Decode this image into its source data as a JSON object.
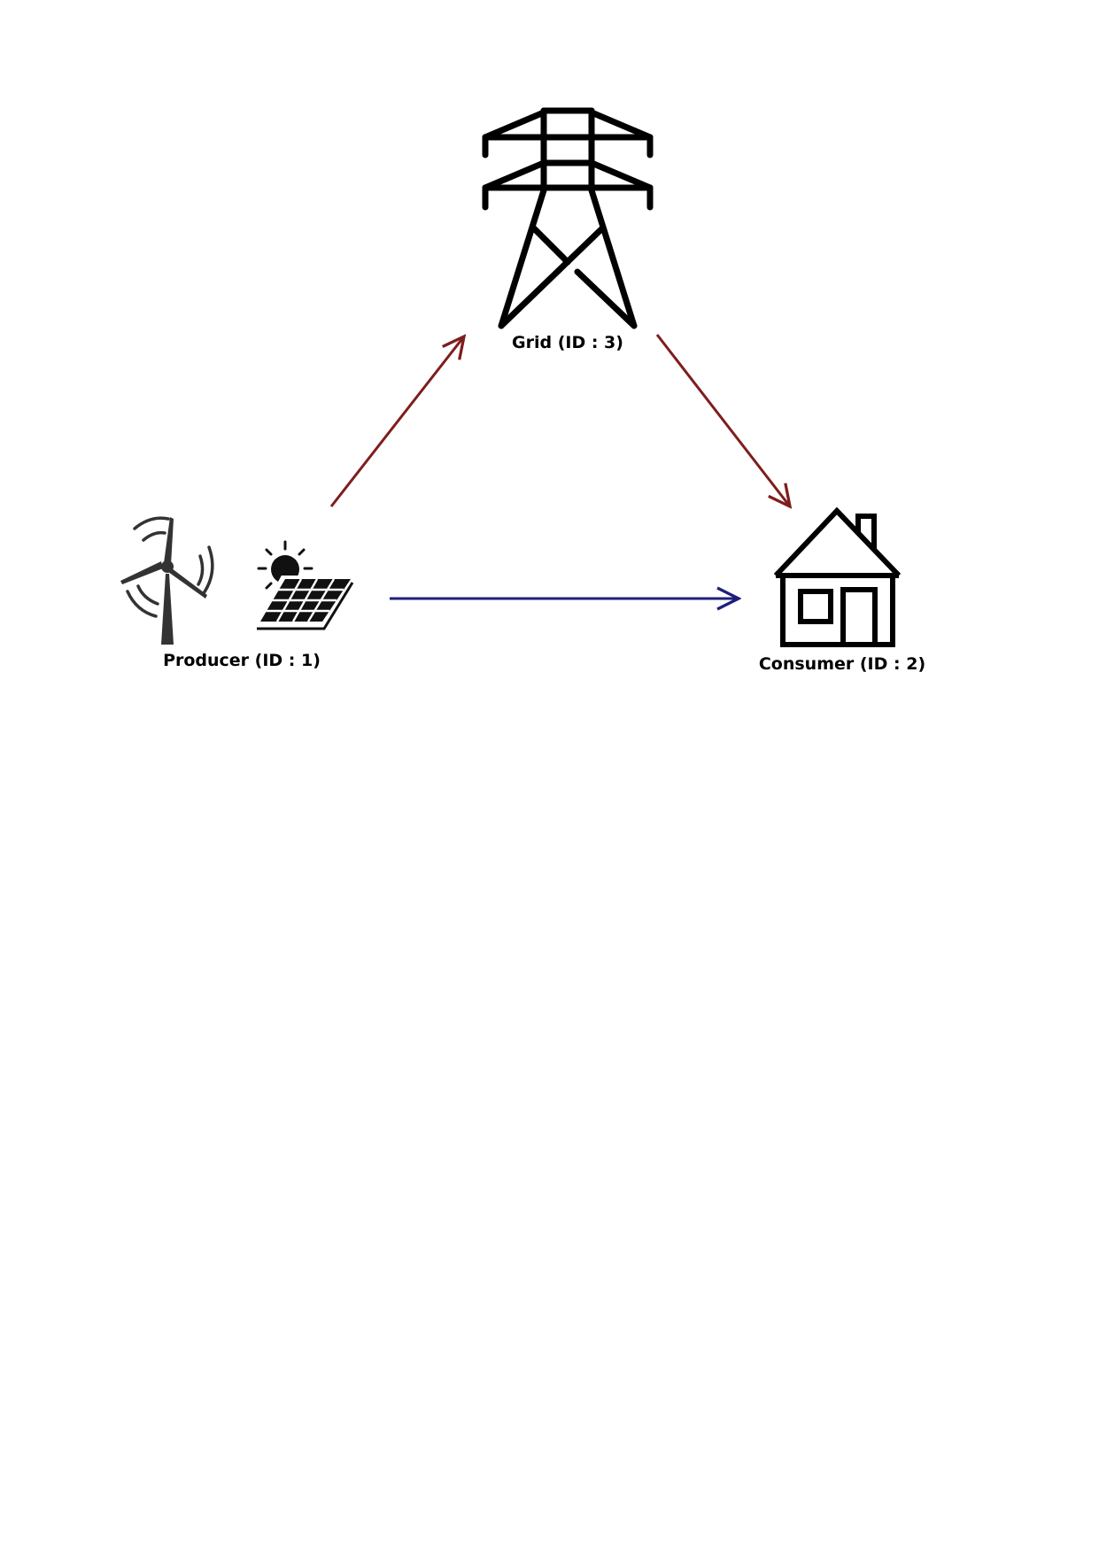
{
  "nodes": {
    "grid": {
      "label": "Grid (ID : 3)",
      "icon": "transmission-tower-icon"
    },
    "producer": {
      "label": "Producer (ID : 1)",
      "icons": [
        "wind-turbine-icon",
        "solar-panel-icon"
      ]
    },
    "consumer": {
      "label": "Consumer (ID : 2)",
      "icon": "house-icon"
    }
  },
  "edges": [
    {
      "from": "producer",
      "to": "grid",
      "color": "#7f1d1d"
    },
    {
      "from": "grid",
      "to": "consumer",
      "color": "#7f1d1d"
    },
    {
      "from": "producer",
      "to": "consumer",
      "color": "#1f1f7a"
    }
  ],
  "colors": {
    "icon": "#000000",
    "icon_gray": "#333333"
  }
}
